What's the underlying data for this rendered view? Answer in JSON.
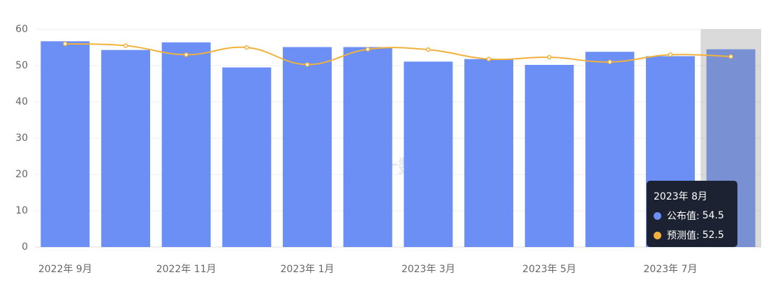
{
  "chart_data": {
    "type": "bar-line",
    "categories": [
      "2022年 9月",
      null,
      "2022年 11月",
      null,
      "2023年 1月",
      null,
      "2023年 3月",
      null,
      "2023年 5月",
      null,
      "2023年 7月",
      null
    ],
    "series": [
      {
        "name": "公布值",
        "type": "bar",
        "color": "#6b8ff5",
        "values": [
          56.7,
          54.3,
          56.4,
          49.5,
          55.1,
          55.1,
          51.1,
          51.8,
          50.2,
          53.8,
          52.6,
          54.5
        ]
      },
      {
        "name": "预测值",
        "type": "line",
        "color": "#f2b13b",
        "values": [
          56.0,
          55.5,
          53.0,
          55.0,
          50.3,
          54.5,
          54.4,
          51.8,
          52.3,
          51.0,
          53.0,
          52.5
        ]
      }
    ],
    "ylim": [
      0,
      60
    ],
    "yticks": [
      0,
      10,
      20,
      30,
      40,
      50,
      60
    ],
    "grid": true,
    "watermark": "金十数据",
    "tooltip": {
      "title": "2023年 8月",
      "index": 11
    }
  }
}
